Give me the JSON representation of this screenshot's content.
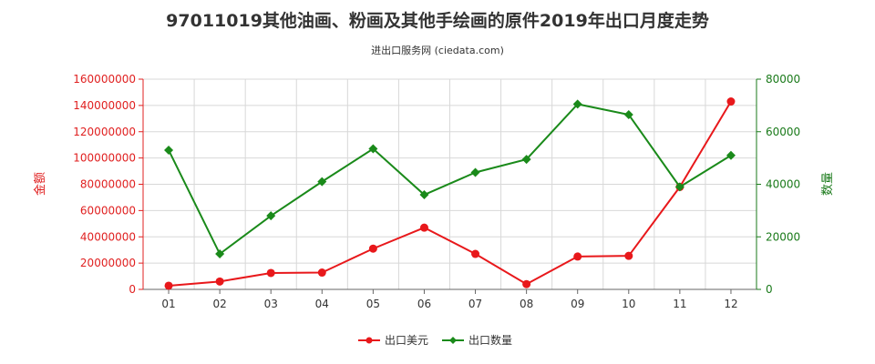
{
  "title": "97011019其他油画、粉画及其他手绘画的原件2019年出口月度走势",
  "subtitle": "进出口服务网 (ciedata.com)",
  "colors": {
    "amount": "#e8181b",
    "quantity": "#1a8a1a",
    "grid": "#d8d8d8",
    "axis_left": "#e02020",
    "axis_right": "#1a7a1a"
  },
  "chart_data": {
    "type": "line",
    "categories": [
      "01",
      "02",
      "03",
      "04",
      "05",
      "06",
      "07",
      "08",
      "09",
      "10",
      "11",
      "12"
    ],
    "y_left": {
      "label": "金额",
      "ylim": [
        0,
        160000000
      ],
      "ticks": [
        "0",
        "20000000",
        "40000000",
        "60000000",
        "80000000",
        "100000000",
        "120000000",
        "140000000",
        "160000000"
      ]
    },
    "y_right": {
      "label": "数量",
      "ylim": [
        0,
        80000
      ],
      "ticks": [
        "0",
        "20000",
        "40000",
        "60000",
        "80000"
      ]
    },
    "series": [
      {
        "name": "出口美元",
        "axis": "left",
        "color": "#e8181b",
        "marker": "circle",
        "values": [
          2800000,
          6000000,
          12500000,
          12800000,
          31000000,
          47000000,
          27000000,
          4000000,
          25000000,
          25500000,
          78000000,
          143000000
        ]
      },
      {
        "name": "出口数量",
        "axis": "right",
        "color": "#1a8a1a",
        "marker": "diamond",
        "values": [
          53000,
          13500,
          28000,
          41000,
          53500,
          36000,
          44500,
          49500,
          70500,
          66500,
          39000,
          51000
        ]
      }
    ],
    "grid": true,
    "legend": "bottom-center"
  }
}
